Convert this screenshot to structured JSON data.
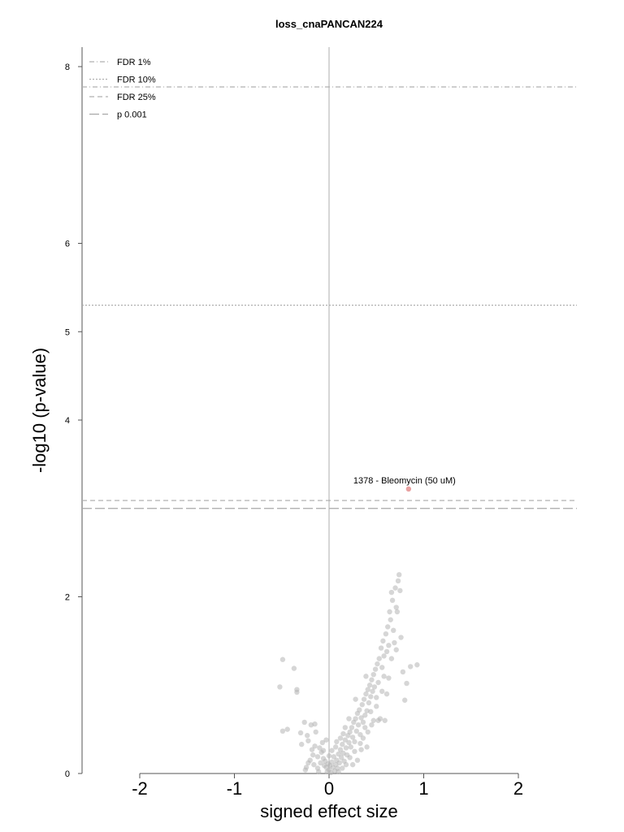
{
  "chart_data": {
    "type": "scatter",
    "title": "loss_cnaPANCAN224",
    "xlabel": "signed effect size",
    "ylabel": "-log10 (p-value)",
    "xlim": [
      -2.6,
      2.6
    ],
    "ylim": [
      0,
      8.2
    ],
    "xticks": [
      -2,
      -1,
      0,
      1,
      2
    ],
    "xtick_labels": [
      "-2",
      "-1",
      "0",
      "1",
      "2"
    ],
    "yticks": [
      0,
      2,
      4,
      5,
      6,
      8
    ],
    "ytick_labels": [
      "0",
      "2",
      "4",
      "5",
      "6",
      "8"
    ],
    "grid": false,
    "legend_position": "top-left",
    "thresholds": [
      {
        "name": "FDR 1%",
        "y": 7.77,
        "style": "dashdot",
        "color": "#b0b0b0"
      },
      {
        "name": "FDR 10%",
        "y": 5.3,
        "style": "dotted",
        "color": "#b0b0b0"
      },
      {
        "name": "FDR 25%",
        "y": 3.09,
        "style": "dashed",
        "color": "#b0b0b0"
      },
      {
        "name": "p 0.001",
        "y": 3.0,
        "style": "longdash",
        "color": "#a8a8a8"
      }
    ],
    "highlight": {
      "label": "1378 - Bleomycin (50 uM)",
      "x": 0.84,
      "y": 3.22,
      "color": "#e8a0a0"
    },
    "point_color": "#b4b4b4",
    "points": [
      [
        -0.52,
        0.98
      ],
      [
        -0.49,
        1.29
      ],
      [
        -0.37,
        1.19
      ],
      [
        -0.34,
        0.95
      ],
      [
        -0.34,
        0.92
      ],
      [
        -0.49,
        0.48
      ],
      [
        -0.44,
        0.5
      ],
      [
        -0.3,
        0.46
      ],
      [
        -0.29,
        0.33
      ],
      [
        -0.26,
        0.58
      ],
      [
        -0.23,
        0.43
      ],
      [
        -0.22,
        0.37
      ],
      [
        -0.19,
        0.55
      ],
      [
        -0.15,
        0.56
      ],
      [
        -0.14,
        0.47
      ],
      [
        -0.15,
        0.31
      ],
      [
        -0.18,
        0.27
      ],
      [
        -0.17,
        0.21
      ],
      [
        -0.12,
        0.19
      ],
      [
        -0.1,
        0.29
      ],
      [
        -0.08,
        0.24
      ],
      [
        -0.07,
        0.35
      ],
      [
        -0.06,
        0.17
      ],
      [
        -0.05,
        0.09
      ],
      [
        -0.04,
        0.14
      ],
      [
        -0.03,
        0.07
      ],
      [
        -0.02,
        0.02
      ],
      [
        -0.01,
        0.11
      ],
      [
        -0.12,
        0.06
      ],
      [
        -0.16,
        0.1
      ],
      [
        -0.22,
        0.12
      ],
      [
        -0.24,
        0.07
      ],
      [
        -0.25,
        0.04
      ],
      [
        -0.2,
        0.15
      ],
      [
        -0.09,
        0.12
      ],
      [
        -0.11,
        0.02
      ],
      [
        0.0,
        0.04
      ],
      [
        0.01,
        0.09
      ],
      [
        0.02,
        0.01
      ],
      [
        0.03,
        0.13
      ],
      [
        0.04,
        0.07
      ],
      [
        0.05,
        0.19
      ],
      [
        0.06,
        0.03
      ],
      [
        0.07,
        0.1
      ],
      [
        0.08,
        0.15
      ],
      [
        0.09,
        0.06
      ],
      [
        0.1,
        0.22
      ],
      [
        0.11,
        0.12
      ],
      [
        0.12,
        0.27
      ],
      [
        0.13,
        0.18
      ],
      [
        0.14,
        0.33
      ],
      [
        0.15,
        0.23
      ],
      [
        0.16,
        0.14
      ],
      [
        0.17,
        0.38
      ],
      [
        0.18,
        0.29
      ],
      [
        0.19,
        0.21
      ],
      [
        0.2,
        0.43
      ],
      [
        0.21,
        0.35
      ],
      [
        0.22,
        0.47
      ],
      [
        0.23,
        0.3
      ],
      [
        0.24,
        0.52
      ],
      [
        0.25,
        0.41
      ],
      [
        0.26,
        0.58
      ],
      [
        0.27,
        0.36
      ],
      [
        0.28,
        0.62
      ],
      [
        0.29,
        0.48
      ],
      [
        0.3,
        0.68
      ],
      [
        0.31,
        0.55
      ],
      [
        0.32,
        0.72
      ],
      [
        0.33,
        0.44
      ],
      [
        0.34,
        0.63
      ],
      [
        0.35,
        0.78
      ],
      [
        0.36,
        0.58
      ],
      [
        0.37,
        0.84
      ],
      [
        0.38,
        0.66
      ],
      [
        0.39,
        0.9
      ],
      [
        0.4,
        0.71
      ],
      [
        0.41,
        0.95
      ],
      [
        0.42,
        0.8
      ],
      [
        0.43,
        1.0
      ],
      [
        0.44,
        0.87
      ],
      [
        0.45,
        1.06
      ],
      [
        0.46,
        0.93
      ],
      [
        0.47,
        1.12
      ],
      [
        0.48,
        0.98
      ],
      [
        0.49,
        1.18
      ],
      [
        0.5,
        0.86
      ],
      [
        0.51,
        1.24
      ],
      [
        0.52,
        1.03
      ],
      [
        0.53,
        1.3
      ],
      [
        0.54,
        0.62
      ],
      [
        0.55,
        1.42
      ],
      [
        0.56,
        1.2
      ],
      [
        0.57,
        1.5
      ],
      [
        0.58,
        1.33
      ],
      [
        0.59,
        0.6
      ],
      [
        0.6,
        1.58
      ],
      [
        0.61,
        1.38
      ],
      [
        0.62,
        1.66
      ],
      [
        0.63,
        1.45
      ],
      [
        0.64,
        1.83
      ],
      [
        0.65,
        1.74
      ],
      [
        0.66,
        2.05
      ],
      [
        0.67,
        1.96
      ],
      [
        0.68,
        1.62
      ],
      [
        0.69,
        1.48
      ],
      [
        0.7,
        2.1
      ],
      [
        0.71,
        1.88
      ],
      [
        0.72,
        1.83
      ],
      [
        0.73,
        2.18
      ],
      [
        0.74,
        2.25
      ],
      [
        0.75,
        2.07
      ],
      [
        0.76,
        1.54
      ],
      [
        0.78,
        1.15
      ],
      [
        0.8,
        0.83
      ],
      [
        0.82,
        1.02
      ],
      [
        0.86,
        1.21
      ],
      [
        0.93,
        1.23
      ],
      [
        0.63,
        1.08
      ],
      [
        0.58,
        1.1
      ],
      [
        0.52,
        0.6
      ],
      [
        0.45,
        0.55
      ],
      [
        0.38,
        0.52
      ],
      [
        0.33,
        0.34
      ],
      [
        0.27,
        0.25
      ],
      [
        0.22,
        0.18
      ],
      [
        0.18,
        0.1
      ],
      [
        0.14,
        0.06
      ],
      [
        0.1,
        0.02
      ],
      [
        0.36,
        0.4
      ],
      [
        0.41,
        0.47
      ],
      [
        0.47,
        0.6
      ],
      [
        0.28,
        0.84
      ],
      [
        0.34,
        0.27
      ],
      [
        0.4,
        0.3
      ],
      [
        0.25,
        0.1
      ],
      [
        0.3,
        0.15
      ],
      [
        0.07,
        0.3
      ],
      [
        0.03,
        0.26
      ],
      [
        -0.03,
        0.38
      ],
      [
        0.12,
        0.4
      ],
      [
        0.17,
        0.52
      ],
      [
        0.21,
        0.62
      ],
      [
        0.39,
        1.1
      ],
      [
        0.44,
        0.7
      ],
      [
        0.5,
        0.76
      ],
      [
        0.56,
        0.93
      ],
      [
        0.61,
        0.9
      ],
      [
        0.66,
        1.3
      ],
      [
        0.71,
        1.4
      ],
      [
        0.0,
        0.2
      ],
      [
        -0.06,
        0.26
      ],
      [
        0.08,
        0.36
      ],
      [
        0.15,
        0.45
      ]
    ]
  }
}
